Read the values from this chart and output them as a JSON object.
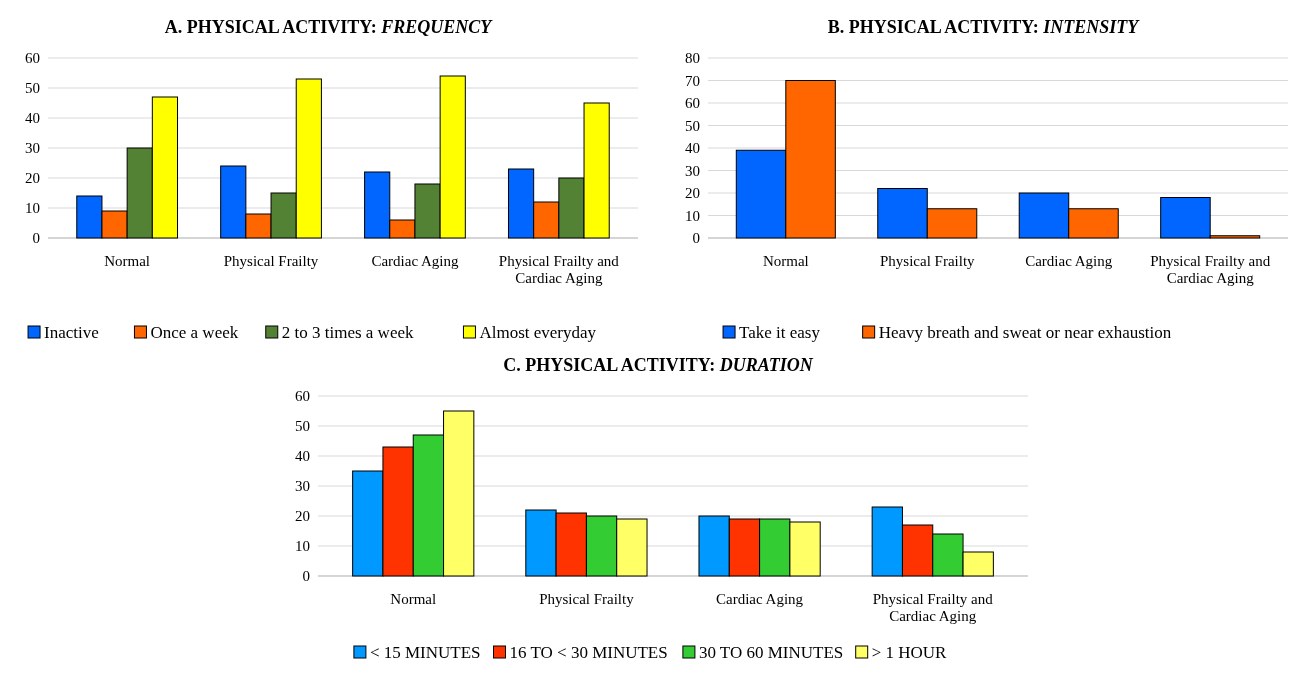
{
  "chart_data": [
    {
      "type": "bar",
      "title": "A. PHYSICAL ACTIVITY: FREQUENCY",
      "categories": [
        "Normal",
        "Physical Frailty",
        "Cardiac Aging",
        "Physical Frailty and Cardiac Aging"
      ],
      "series": [
        {
          "name": "Inactive",
          "color": "#0066ff",
          "values": [
            14,
            24,
            22,
            23
          ]
        },
        {
          "name": "Once a week",
          "color": "#ff6600",
          "values": [
            9,
            8,
            6,
            12
          ]
        },
        {
          "name": "2 to 3 times a week",
          "color": "#548235",
          "values": [
            30,
            15,
            18,
            20
          ]
        },
        {
          "name": "Almost everyday",
          "color": "#ffff00",
          "values": [
            47,
            53,
            54,
            45
          ]
        }
      ],
      "ylim": [
        0,
        60
      ],
      "yticks": [
        0,
        10,
        20,
        30,
        40,
        50,
        60
      ],
      "grid": "y",
      "legend": "bottom"
    },
    {
      "type": "bar",
      "title": "B. PHYSICAL ACTIVITY: INTENSITY",
      "categories": [
        "Normal",
        "Physical Frailty",
        "Cardiac Aging",
        "Physical Frailty and Cardiac Aging"
      ],
      "series": [
        {
          "name": "Take it easy",
          "color": "#0066ff",
          "values": [
            39,
            22,
            20,
            18
          ]
        },
        {
          "name": "Heavy breath and sweat or near exhaustion",
          "color": "#ff6600",
          "values": [
            70,
            13,
            13,
            1
          ]
        }
      ],
      "ylim": [
        0,
        80
      ],
      "yticks": [
        0,
        10,
        20,
        30,
        40,
        50,
        60,
        70,
        80
      ],
      "grid": "y",
      "legend": "bottom"
    },
    {
      "type": "bar",
      "title": "C. PHYSICAL ACTIVITY: DURATION",
      "categories": [
        "Normal",
        "Physical Frailty",
        "Cardiac Aging",
        "Physical Frailty and Cardiac Aging"
      ],
      "series": [
        {
          "name": "< 15 MINUTES",
          "color": "#0099ff",
          "values": [
            35,
            22,
            20,
            23
          ]
        },
        {
          "name": "16 TO < 30 MINUTES",
          "color": "#ff3300",
          "values": [
            43,
            21,
            19,
            17
          ]
        },
        {
          "name": "30 TO 60 MINUTES",
          "color": "#33cc33",
          "values": [
            47,
            20,
            19,
            14
          ]
        },
        {
          "name": "> 1 HOUR",
          "color": "#ffff66",
          "values": [
            55,
            19,
            18,
            8
          ]
        }
      ],
      "ylim": [
        0,
        60
      ],
      "yticks": [
        0,
        10,
        20,
        30,
        40,
        50,
        60
      ],
      "grid": "y",
      "legend": "bottom"
    }
  ]
}
